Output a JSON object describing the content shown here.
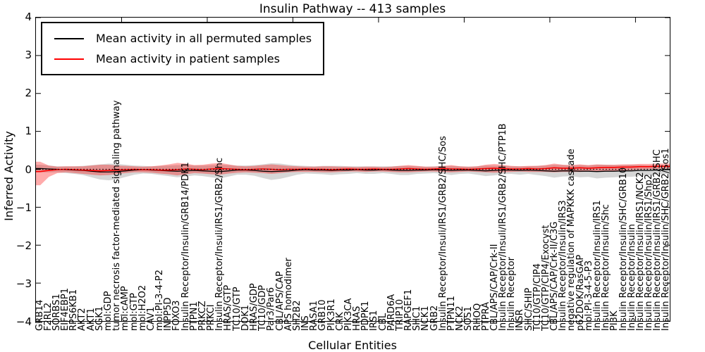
{
  "chart_data": {
    "type": "line",
    "title": "Insulin Pathway -- 413 samples",
    "xlabel": "Cellular Entities",
    "ylabel": "Inferred Activity",
    "ylim": [
      -4,
      4
    ],
    "ytick_labels": [
      "4",
      "3",
      "2",
      "1",
      "0",
      "−1",
      "−2",
      "−3",
      "−4"
    ],
    "grid": false,
    "legend_position": "upper left",
    "reference_line": 0,
    "colors": {
      "permuted_line": "#000000",
      "patient_line": "#ff0000",
      "permuted_band": "#808080",
      "patient_band": "#ff0000"
    },
    "categories": [
      "GRB14",
      "F2RL2",
      "SORBS1",
      "EIF4EBP1",
      "RPS6KB1",
      "AKT2",
      "AKT1",
      "SGK1",
      "mol:GDP",
      "tumor necrosis factor-mediated signaling pathway",
      "mol:cAMP",
      "mol:GTP",
      "mol:H2O2",
      "CAV1",
      "mol:PI-3-4-P2",
      "INPP5D",
      "FOXO3",
      "Insulin Receptor/Insulin/GRB14/PDK1",
      "PTPN1",
      "PRKCZ",
      "PRKCI",
      "Insulin Receptor/Insuli/IRS1/GRB2/Shc",
      "HRAS/GTP",
      "TC10/GTP",
      "DOK1",
      "HRAS/GDP",
      "TC10/GDP",
      "Par3/Par6",
      "CBL/APS/CAP",
      "APS homodimer",
      "SH2B2",
      "INS",
      "RASA1",
      "GRB10",
      "PIK3R1",
      "CRK",
      "PIK3CA",
      "HRAS",
      "PDPK1",
      "IRS1",
      "CBL",
      "PARD6A",
      "TRIP10",
      "RAPGEF1",
      "SHC1",
      "NCK1",
      "GRB2",
      "Insulin Receptor/Insuli/IRS1/GRB2/SHC/Sos",
      "PTPN11",
      "NCK2",
      "SOS1",
      "RHOQ",
      "PTPRA",
      "CBL/APS/CAP/Crk-II",
      "Insulin Receptor/Insuli/IRS1/GRB2/SHC/PTP1B",
      "Insulin Receptor",
      "INSR",
      "SHC/SHIP",
      "TC10/GTP/CIP4",
      "TC10/GTP/CIP4/Exocyst",
      "CBL/APS/CAP/Crk-II/C3G",
      "Insulin Receptor/Insulin/IRS3",
      "negative regulation of MAPKKK cascade",
      "p62DOK/RasGAP",
      "mol:PI-3-4-5-P3",
      "Insulin Receptor/Insulin/IRS1",
      "Insulin Receptor/Insulin/Shc",
      "PI3K",
      "Insulin Receptor/Insulin/SHC/GRB10",
      "Insulin Receptor/Insulin",
      "Insulin Receptor/Insulin/IRS1/NCK2",
      "Insulin Receptor/Insulin/IRS1/Shp2",
      "Insulin Receptor/Insulin/IRS1/GRB2/SHC",
      "Insulin Receptor/Insulin/SHC/GRB2/Sos1"
    ],
    "series": [
      {
        "name": "Mean activity in all permuted samples",
        "color": "#000000",
        "values": [
          0.02,
          0.01,
          0.0,
          -0.01,
          -0.02,
          -0.03,
          -0.05,
          -0.07,
          -0.07,
          -0.06,
          -0.04,
          -0.02,
          -0.01,
          -0.02,
          -0.03,
          -0.04,
          -0.05,
          -0.04,
          -0.03,
          -0.04,
          -0.05,
          -0.06,
          -0.04,
          -0.02,
          -0.02,
          -0.03,
          -0.05,
          -0.06,
          -0.05,
          -0.04,
          -0.02,
          -0.01,
          -0.02,
          -0.02,
          -0.03,
          -0.02,
          -0.02,
          -0.01,
          -0.02,
          -0.02,
          -0.01,
          -0.02,
          -0.03,
          -0.03,
          -0.02,
          -0.02,
          -0.01,
          -0.02,
          -0.03,
          -0.02,
          -0.02,
          -0.03,
          -0.04,
          -0.03,
          -0.02,
          -0.02,
          -0.03,
          -0.02,
          -0.03,
          -0.04,
          -0.05,
          -0.04,
          -0.04,
          -0.05,
          -0.05,
          -0.06,
          -0.05,
          -0.05,
          -0.04,
          -0.04,
          -0.03,
          -0.03,
          -0.02,
          -0.01
        ],
        "band_half_width": [
          0.1,
          0.09,
          0.08,
          0.09,
          0.1,
          0.12,
          0.16,
          0.2,
          0.22,
          0.2,
          0.16,
          0.12,
          0.1,
          0.1,
          0.12,
          0.14,
          0.16,
          0.15,
          0.13,
          0.14,
          0.16,
          0.18,
          0.15,
          0.12,
          0.12,
          0.14,
          0.18,
          0.22,
          0.2,
          0.16,
          0.12,
          0.1,
          0.1,
          0.11,
          0.12,
          0.11,
          0.1,
          0.09,
          0.1,
          0.1,
          0.09,
          0.1,
          0.12,
          0.12,
          0.1,
          0.09,
          0.09,
          0.1,
          0.12,
          0.1,
          0.09,
          0.11,
          0.14,
          0.13,
          0.11,
          0.1,
          0.11,
          0.1,
          0.12,
          0.14,
          0.17,
          0.15,
          0.14,
          0.16,
          0.15,
          0.18,
          0.17,
          0.16,
          0.15,
          0.16,
          0.14,
          0.13,
          0.12,
          0.11
        ]
      },
      {
        "name": "Mean activity in patient samples",
        "color": "#ff0000",
        "values": [
          -0.06,
          -0.03,
          -0.01,
          0.0,
          -0.01,
          -0.02,
          -0.03,
          -0.04,
          -0.03,
          -0.02,
          -0.01,
          0.0,
          -0.01,
          -0.01,
          -0.02,
          -0.02,
          -0.01,
          0.01,
          0.0,
          -0.01,
          0.01,
          0.02,
          0.01,
          0.0,
          -0.01,
          0.0,
          0.01,
          0.0,
          -0.01,
          0.0,
          0.0,
          0.01,
          0.0,
          0.0,
          -0.01,
          0.0,
          0.01,
          0.0,
          0.0,
          0.01,
          0.0,
          0.0,
          0.01,
          0.02,
          0.01,
          0.0,
          0.01,
          0.02,
          0.01,
          0.01,
          0.0,
          0.01,
          0.02,
          0.03,
          0.02,
          0.01,
          0.01,
          0.02,
          0.01,
          0.02,
          0.04,
          0.03,
          0.03,
          0.04,
          0.03,
          0.04,
          0.05,
          0.05,
          0.06,
          0.06,
          0.07,
          0.07,
          0.08,
          0.08
        ],
        "band_hi": [
          0.2,
          0.1,
          0.07,
          0.08,
          0.08,
          0.08,
          0.1,
          0.12,
          0.12,
          0.1,
          0.09,
          0.08,
          0.07,
          0.08,
          0.1,
          0.13,
          0.17,
          0.15,
          0.11,
          0.12,
          0.15,
          0.17,
          0.13,
          0.09,
          0.08,
          0.09,
          0.11,
          0.13,
          0.11,
          0.09,
          0.08,
          0.07,
          0.07,
          0.08,
          0.08,
          0.07,
          0.07,
          0.06,
          0.07,
          0.07,
          0.06,
          0.07,
          0.09,
          0.11,
          0.09,
          0.07,
          0.07,
          0.09,
          0.11,
          0.08,
          0.07,
          0.08,
          0.12,
          0.14,
          0.12,
          0.09,
          0.08,
          0.09,
          0.09,
          0.11,
          0.15,
          0.12,
          0.11,
          0.13,
          0.11,
          0.13,
          0.12,
          0.12,
          0.13,
          0.13,
          0.14,
          0.14,
          0.15,
          0.15
        ],
        "band_lo": [
          -0.42,
          -0.2,
          -0.1,
          -0.08,
          -0.1,
          -0.12,
          -0.14,
          -0.16,
          -0.15,
          -0.12,
          -0.1,
          -0.08,
          -0.08,
          -0.09,
          -0.11,
          -0.13,
          -0.16,
          -0.13,
          -0.1,
          -0.11,
          -0.13,
          -0.14,
          -0.11,
          -0.09,
          -0.08,
          -0.09,
          -0.1,
          -0.12,
          -0.1,
          -0.08,
          -0.07,
          -0.07,
          -0.07,
          -0.08,
          -0.08,
          -0.07,
          -0.06,
          -0.06,
          -0.07,
          -0.06,
          -0.06,
          -0.07,
          -0.08,
          -0.08,
          -0.07,
          -0.06,
          -0.06,
          -0.07,
          -0.08,
          -0.07,
          -0.06,
          -0.07,
          -0.08,
          -0.09,
          -0.08,
          -0.07,
          -0.06,
          -0.07,
          -0.07,
          -0.07,
          -0.08,
          -0.07,
          -0.07,
          -0.07,
          -0.06,
          -0.06,
          -0.05,
          -0.04,
          -0.03,
          -0.02,
          -0.01,
          0.0,
          0.01,
          0.02
        ]
      }
    ]
  }
}
